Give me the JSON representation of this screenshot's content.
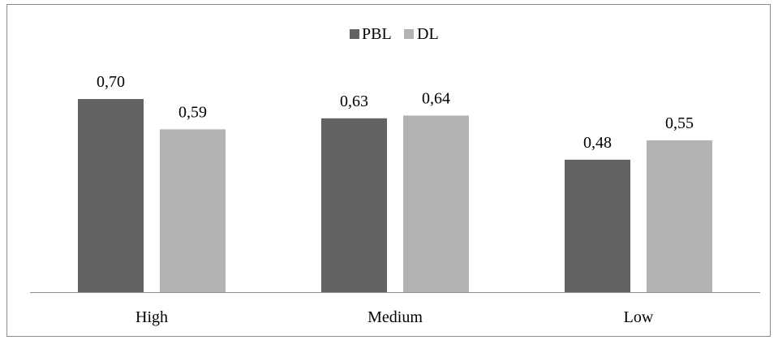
{
  "chart_data": {
    "type": "bar",
    "categories": [
      "High",
      "Medium",
      "Low"
    ],
    "series": [
      {
        "name": "PBL",
        "values": [
          "0,70",
          "0,63",
          "0,48"
        ],
        "numeric": [
          0.7,
          0.63,
          0.48
        ],
        "color": "#636363"
      },
      {
        "name": "DL",
        "values": [
          "0,59",
          "0,64",
          "0,55"
        ],
        "numeric": [
          0.59,
          0.64,
          0.55
        ],
        "color": "#b2b2b2"
      }
    ],
    "title": "",
    "xlabel": "",
    "ylabel": "",
    "ylim": [
      0,
      0.8
    ],
    "grid": false,
    "legend_position": "top-center"
  }
}
